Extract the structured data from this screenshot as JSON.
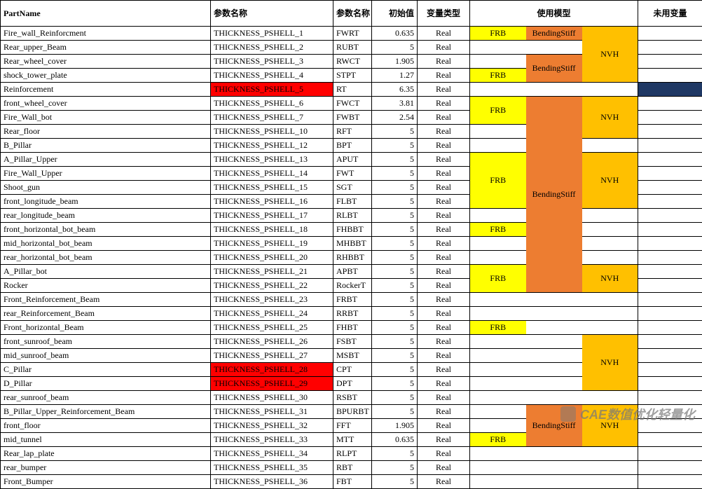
{
  "headers": {
    "partname": "PartName",
    "param1": "参数名称",
    "param2": "参数名称",
    "init": "初始值",
    "type": "变量类型",
    "model": "使用模型",
    "unused": "未用变量"
  },
  "rows": [
    {
      "partname": "Fire_wall_Reinforcment",
      "param1": "THICKNESS_PSHELL_1",
      "param2": "FWRT",
      "init": "0.635",
      "type": "Real",
      "m1": "FRB",
      "m1_bg": "bg-yellow",
      "m2": "BendingStiff",
      "m2_bg": "bg-orange1",
      "m2_rowspan": 1,
      "m3": "NVH",
      "m3_bg": "bg-orange2",
      "m3_rowspan": 4,
      "unused": ""
    },
    {
      "partname": "Rear_upper_Beam",
      "param1": "THICKNESS_PSHELL_2",
      "param2": "RUBT",
      "init": "5",
      "type": "Real",
      "m1": "",
      "m1_bg": "",
      "m2": "",
      "m2_bg": "",
      "m2_rowspan": 1,
      "unused": ""
    },
    {
      "partname": "Rear_wheel_cover",
      "param1": "THICKNESS_PSHELL_3",
      "param2": "RWCT",
      "init": "1.905",
      "type": "Real",
      "m1": "",
      "m1_bg": "",
      "m2": "BendingStiff",
      "m2_bg": "bg-orange1",
      "m2_rowspan": 2,
      "unused": ""
    },
    {
      "partname": "shock_tower_plate",
      "param1": "THICKNESS_PSHELL_4",
      "param2": "STPT",
      "init": "1.27",
      "type": "Real",
      "m1": "FRB",
      "m1_bg": "bg-yellow",
      "unused": ""
    },
    {
      "partname": "Reinforcement",
      "param1": "THICKNESS_PSHELL_5",
      "param1_bg": "bg-red",
      "param2": "RT",
      "init": "6.35",
      "type": "Real",
      "m1": "",
      "m1_bg": "",
      "m2": "",
      "m2_bg": "",
      "m2_rowspan": 1,
      "m3": "",
      "m3_bg": "",
      "m3_rowspan": 1,
      "unused": "",
      "unused_bg": "bg-navy"
    },
    {
      "partname": "front_wheel_cover",
      "param1": "THICKNESS_PSHELL_6",
      "param2": "FWCT",
      "init": "3.81",
      "type": "Real",
      "m1": "FRB",
      "m1_bg": "bg-yellow",
      "m1_rowspan": 2,
      "m2": "BendingStiff",
      "m2_bg": "bg-orange1",
      "m2_rowspan": 14,
      "m3": "NVH",
      "m3_bg": "bg-orange2",
      "m3_rowspan": 3,
      "unused": ""
    },
    {
      "partname": "Fire_Wall_bot",
      "param1": "THICKNESS_PSHELL_7",
      "param2": "FWBT",
      "init": "2.54",
      "type": "Real",
      "unused": ""
    },
    {
      "partname": "Rear_floor",
      "param1": "THICKNESS_PSHELL_10",
      "param2": "RFT",
      "init": "5",
      "type": "Real",
      "m1": "",
      "m1_bg": "",
      "m1_rowspan": 1,
      "unused": ""
    },
    {
      "partname": "B_Pillar",
      "param1": "THICKNESS_PSHELL_12",
      "param2": "BPT",
      "init": "5",
      "type": "Real",
      "m1": "",
      "m1_bg": "",
      "m1_rowspan": 1,
      "m3": "",
      "m3_bg": "",
      "m3_rowspan": 1,
      "unused": ""
    },
    {
      "partname": "A_Pillar_Upper",
      "param1": "THICKNESS_PSHELL_13",
      "param2": "APUT",
      "init": "5",
      "type": "Real",
      "m1": "FRB",
      "m1_bg": "bg-yellow",
      "m1_rowspan": 4,
      "m3": "NVH",
      "m3_bg": "bg-orange2",
      "m3_rowspan": 4,
      "unused": ""
    },
    {
      "partname": "Fire_Wall_Upper",
      "param1": "THICKNESS_PSHELL_14",
      "param2": "FWT",
      "init": "5",
      "type": "Real",
      "unused": ""
    },
    {
      "partname": "Shoot_gun",
      "param1": "THICKNESS_PSHELL_15",
      "param2": "SGT",
      "init": "5",
      "type": "Real",
      "unused": ""
    },
    {
      "partname": "front_longitude_beam",
      "param1": "THICKNESS_PSHELL_16",
      "param2": "FLBT",
      "init": "5",
      "type": "Real",
      "unused": ""
    },
    {
      "partname": "rear_longitude_beam",
      "param1": "THICKNESS_PSHELL_17",
      "param2": "RLBT",
      "init": "5",
      "type": "Real",
      "m1": "",
      "m1_bg": "",
      "m1_rowspan": 1,
      "m3": "",
      "m3_bg": "",
      "m3_rowspan": 1,
      "unused": ""
    },
    {
      "partname": "front_horizontal_bot_beam",
      "param1": "THICKNESS_PSHELL_18",
      "param2": "FHBBT",
      "init": "5",
      "type": "Real",
      "m1": "FRB",
      "m1_bg": "bg-yellow",
      "m1_rowspan": 1,
      "m3": "",
      "m3_bg": "",
      "m3_rowspan": 1,
      "unused": ""
    },
    {
      "partname": "mid_horizontal_bot_beam",
      "param1": "THICKNESS_PSHELL_19",
      "param2": "MHBBT",
      "init": "5",
      "type": "Real",
      "m1": "",
      "m1_bg": "",
      "m1_rowspan": 1,
      "m3": "",
      "m3_bg": "",
      "m3_rowspan": 1,
      "unused": ""
    },
    {
      "partname": "rear_horizontal_bot_beam",
      "param1": "THICKNESS_PSHELL_20",
      "param2": "RHBBT",
      "init": "5",
      "type": "Real",
      "m1": "",
      "m1_bg": "",
      "m1_rowspan": 1,
      "m3": "",
      "m3_bg": "",
      "m3_rowspan": 1,
      "unused": ""
    },
    {
      "partname": "A_Pillar_bot",
      "param1": "THICKNESS_PSHELL_21",
      "param2": "APBT",
      "init": "5",
      "type": "Real",
      "m1": "FRB",
      "m1_bg": "bg-yellow",
      "m1_rowspan": 2,
      "m3": "NVH",
      "m3_bg": "bg-orange2",
      "m3_rowspan": 2,
      "unused": ""
    },
    {
      "partname": "Rocker",
      "param1": "THICKNESS_PSHELL_22",
      "param2": "RockerT",
      "init": "5",
      "type": "Real",
      "unused": ""
    },
    {
      "partname": "Front_Reinforcement_Beam",
      "param1": "THICKNESS_PSHELL_23",
      "param2": "FRBT",
      "init": "5",
      "type": "Real",
      "m1": "",
      "m1_bg": "",
      "m1_rowspan": 1,
      "m2": "",
      "m2_bg": "",
      "m2_rowspan": 1,
      "m3": "",
      "m3_bg": "",
      "m3_rowspan": 1,
      "unused": ""
    },
    {
      "partname": "rear_Reinforcement_Beam",
      "param1": "THICKNESS_PSHELL_24",
      "param2": "RRBT",
      "init": "5",
      "type": "Real",
      "m1": "",
      "m1_bg": "",
      "m1_rowspan": 1,
      "m2": "",
      "m2_bg": "",
      "m2_rowspan": 1,
      "m3": "",
      "m3_bg": "",
      "m3_rowspan": 1,
      "unused": ""
    },
    {
      "partname": "Front_horizontal_Beam",
      "param1": "THICKNESS_PSHELL_25",
      "param2": "FHBT",
      "init": "5",
      "type": "Real",
      "m1": "FRB",
      "m1_bg": "bg-yellow",
      "m1_rowspan": 1,
      "m2": "",
      "m2_bg": "",
      "m2_rowspan": 1,
      "m3": "",
      "m3_bg": "",
      "m3_rowspan": 1,
      "unused": ""
    },
    {
      "partname": "front_sunroof_beam",
      "param1": "THICKNESS_PSHELL_26",
      "param2": "FSBT",
      "init": "5",
      "type": "Real",
      "m1": "",
      "m1_bg": "",
      "m1_rowspan": 1,
      "m2": "",
      "m2_bg": "",
      "m2_rowspan": 1,
      "m3": "NVH",
      "m3_bg": "bg-orange2",
      "m3_rowspan": 4,
      "unused": ""
    },
    {
      "partname": "mid_sunroof_beam",
      "param1": "THICKNESS_PSHELL_27",
      "param2": "MSBT",
      "init": "5",
      "type": "Real",
      "m1": "",
      "m1_bg": "",
      "m1_rowspan": 1,
      "m2": "",
      "m2_bg": "",
      "m2_rowspan": 1,
      "unused": ""
    },
    {
      "partname": "C_Pillar",
      "param1": "THICKNESS_PSHELL_28",
      "param1_bg": "bg-red",
      "param2": "CPT",
      "init": "5",
      "type": "Real",
      "m1": "",
      "m1_bg": "",
      "m1_rowspan": 1,
      "m2": "",
      "m2_bg": "",
      "m2_rowspan": 1,
      "unused": ""
    },
    {
      "partname": "D_Pillar",
      "param1": "THICKNESS_PSHELL_29",
      "param1_bg": "bg-red",
      "param2": "DPT",
      "init": "5",
      "type": "Real",
      "m1": "",
      "m1_bg": "",
      "m1_rowspan": 1,
      "m2": "",
      "m2_bg": "",
      "m2_rowspan": 1,
      "unused": ""
    },
    {
      "partname": "rear_sunroof_beam",
      "param1": "THICKNESS_PSHELL_30",
      "param2": "RSBT",
      "init": "5",
      "type": "Real",
      "m1": "",
      "m1_bg": "",
      "m1_rowspan": 1,
      "m2": "",
      "m2_bg": "",
      "m2_rowspan": 1,
      "m3": "",
      "m3_bg": "",
      "m3_rowspan": 1,
      "unused": ""
    },
    {
      "partname": "B_Pillar_Upper_Reinforcement_Beam",
      "param1": "THICKNESS_PSHELL_31",
      "param2": "BPURBT",
      "init": "5",
      "type": "Real",
      "m1": "",
      "m1_bg": "",
      "m1_rowspan": 1,
      "m2": "BendingStiff",
      "m2_bg": "bg-orange1",
      "m2_rowspan": 3,
      "m3": "NVH",
      "m3_bg": "bg-orange2",
      "m3_rowspan": 3,
      "unused": ""
    },
    {
      "partname": "front_floor",
      "param1": "THICKNESS_PSHELL_32",
      "param2": "FFT",
      "init": "1.905",
      "type": "Real",
      "m1": "",
      "m1_bg": "",
      "m1_rowspan": 1,
      "unused": ""
    },
    {
      "partname": "mid_tunnel",
      "param1": "THICKNESS_PSHELL_33",
      "param2": "MTT",
      "init": "0.635",
      "type": "Real",
      "m1": "FRB",
      "m1_bg": "bg-yellow",
      "m1_rowspan": 1,
      "unused": ""
    },
    {
      "partname": "Rear_lap_plate",
      "param1": "THICKNESS_PSHELL_34",
      "param2": "RLPT",
      "init": "5",
      "type": "Real",
      "m1": "",
      "m1_bg": "",
      "m1_rowspan": 1,
      "m2": "",
      "m2_bg": "",
      "m2_rowspan": 1,
      "m3": "",
      "m3_bg": "",
      "m3_rowspan": 1,
      "unused": ""
    },
    {
      "partname": "rear_bumper",
      "param1": "THICKNESS_PSHELL_35",
      "param2": "RBT",
      "init": "5",
      "type": "Real",
      "m1": "",
      "m1_bg": "",
      "m1_rowspan": 1,
      "m2": "",
      "m2_bg": "",
      "m2_rowspan": 1,
      "m3": "",
      "m3_bg": "",
      "m3_rowspan": 1,
      "unused": ""
    },
    {
      "partname": "Front_Bumper",
      "param1": "THICKNESS_PSHELL_36",
      "param2": "FBT",
      "init": "5",
      "type": "Real",
      "m1": "",
      "m1_bg": "",
      "m1_rowspan": 1,
      "m2": "",
      "m2_bg": "",
      "m2_rowspan": 1,
      "m3": "",
      "m3_bg": "",
      "m3_rowspan": 1,
      "unused": ""
    }
  ],
  "watermark": "CAE数值优化轻量化"
}
